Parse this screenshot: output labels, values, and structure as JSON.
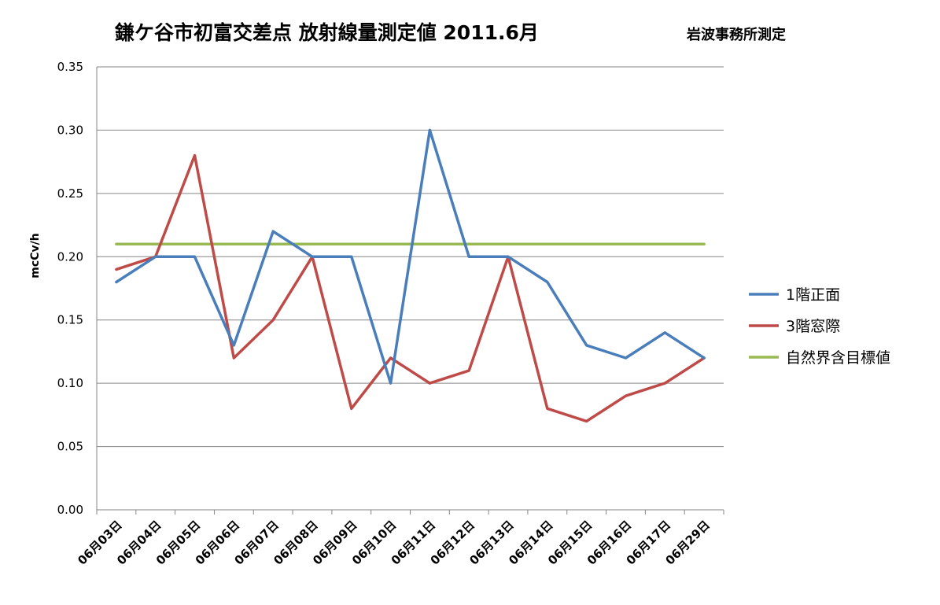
{
  "chart_data": {
    "type": "line",
    "title": "鎌ケ谷市初富交差点  放射線量測定値  2011.6月",
    "subtitle": "岩波事務所測定",
    "xlabel": "",
    "ylabel": "mcCv/h",
    "ylim": [
      0,
      0.35
    ],
    "yticks": [
      "0.00",
      "0.05",
      "0.10",
      "0.15",
      "0.20",
      "0.25",
      "0.30",
      "0.35"
    ],
    "categories": [
      "06月03日",
      "06月04日",
      "06月05日",
      "06月06日",
      "06月07日",
      "06月08日",
      "06月09日",
      "06月10日",
      "06月11日",
      "06月12日",
      "06月13日",
      "06月14日",
      "06月15日",
      "06月16日",
      "06月17日",
      "06月29日"
    ],
    "grid": true,
    "legend_position": "right",
    "series": [
      {
        "name": "1階正面",
        "color": "#4A7EBB",
        "values": [
          0.18,
          0.2,
          0.2,
          0.13,
          0.22,
          0.2,
          0.2,
          0.1,
          0.3,
          0.2,
          0.2,
          0.18,
          0.13,
          0.12,
          0.14,
          0.12
        ]
      },
      {
        "name": "3階窓際",
        "color": "#BE4B48",
        "values": [
          0.19,
          0.2,
          0.28,
          0.12,
          0.15,
          0.2,
          0.08,
          0.12,
          0.1,
          0.11,
          0.2,
          0.08,
          0.07,
          0.09,
          0.1,
          0.12
        ]
      },
      {
        "name": "自然界含目標値",
        "color": "#98B954",
        "values": [
          0.21,
          0.21,
          0.21,
          0.21,
          0.21,
          0.21,
          0.21,
          0.21,
          0.21,
          0.21,
          0.21,
          0.21,
          0.21,
          0.21,
          0.21,
          0.21
        ]
      }
    ]
  }
}
